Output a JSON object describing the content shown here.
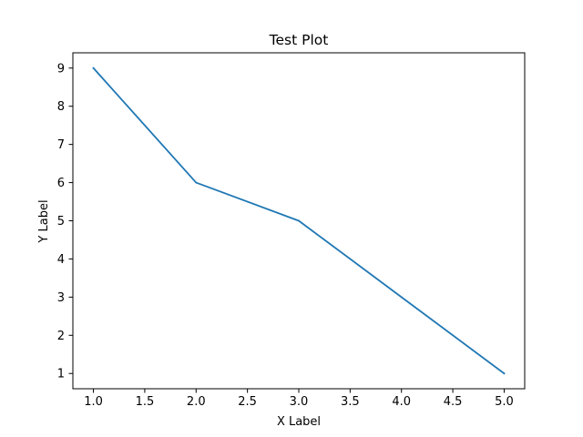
{
  "chart_data": {
    "type": "line",
    "title": "Test Plot",
    "xlabel": "X Label",
    "ylabel": "Y Label",
    "x": [
      1,
      2,
      3,
      4,
      5
    ],
    "series": [
      {
        "values": [
          9,
          6,
          5,
          3,
          1
        ],
        "color": "#1f77b4"
      }
    ],
    "xlim": [
      0.8,
      5.2
    ],
    "ylim": [
      0.6,
      9.4
    ],
    "xticks": [
      1.0,
      1.5,
      2.0,
      2.5,
      3.0,
      3.5,
      4.0,
      4.5,
      5.0
    ],
    "xtick_labels": [
      "1.0",
      "1.5",
      "2.0",
      "2.5",
      "3.0",
      "3.5",
      "4.0",
      "4.5",
      "5.0"
    ],
    "yticks": [
      1,
      2,
      3,
      4,
      5,
      6,
      7,
      8,
      9
    ],
    "ytick_labels": [
      "1",
      "2",
      "3",
      "4",
      "5",
      "6",
      "7",
      "8",
      "9"
    ],
    "grid": false,
    "legend": "none"
  }
}
